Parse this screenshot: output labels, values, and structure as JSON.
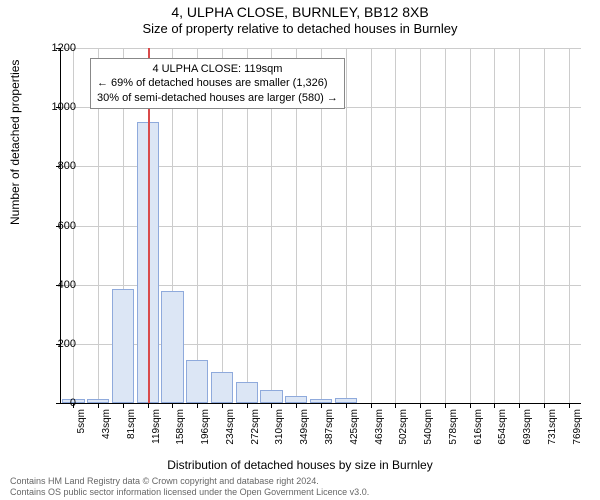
{
  "title": "4, ULPHA CLOSE, BURNLEY, BB12 8XB",
  "subtitle": "Size of property relative to detached houses in Burnley",
  "chart": {
    "type": "histogram",
    "x_label": "Distribution of detached houses by size in Burnley",
    "y_label": "Number of detached properties",
    "ylim": [
      0,
      1200
    ],
    "ytick_step": 200,
    "x_categories": [
      "5sqm",
      "43sqm",
      "81sqm",
      "119sqm",
      "158sqm",
      "196sqm",
      "234sqm",
      "272sqm",
      "310sqm",
      "349sqm",
      "387sqm",
      "425sqm",
      "463sqm",
      "502sqm",
      "540sqm",
      "578sqm",
      "616sqm",
      "654sqm",
      "693sqm",
      "731sqm",
      "769sqm"
    ],
    "bars": [
      15,
      15,
      385,
      950,
      380,
      145,
      105,
      70,
      45,
      25,
      15,
      18,
      0,
      0,
      0,
      0,
      0,
      0,
      0,
      0,
      0
    ],
    "bar_fill": "#dce6f5",
    "bar_stroke": "#8faadc",
    "marker_index": 3,
    "marker_color": "#d94a4a",
    "grid_color": "#cccccc",
    "background_color": "#ffffff",
    "annotation": {
      "line1": "4 ULPHA CLOSE: 119sqm",
      "line2": "← 69% of detached houses are smaller (1,326)",
      "line3": "30% of semi-detached houses are larger (580) →"
    }
  },
  "attribution": {
    "line1": "Contains HM Land Registry data © Crown copyright and database right 2024.",
    "line2": "Contains OS public sector information licensed under the Open Government Licence v3.0."
  }
}
